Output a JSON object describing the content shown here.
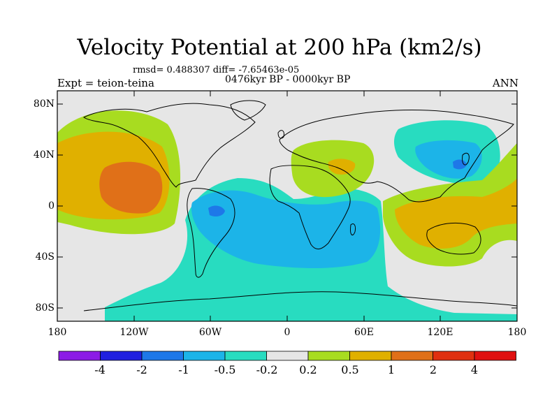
{
  "title": "Velocity Potential at 200 hPa (km2/s)",
  "stats": "rmsd= 0.488307 diff= -7.65463e-05",
  "period": "0476kyr BP - 0000kyr BP",
  "expt": "Expt = teion-teina",
  "season": "ANN",
  "lat_labels": [
    "80N",
    "40N",
    "0",
    "40S",
    "80S"
  ],
  "lon_labels": [
    "180",
    "120W",
    "60W",
    "0",
    "60E",
    "120E",
    "180"
  ],
  "colorbar": {
    "labels": [
      "-4",
      "-2",
      "-1",
      "-0.5",
      "-0.2",
      "0.2",
      "0.5",
      "1",
      "2",
      "4"
    ],
    "colors": [
      "#8c1be6",
      "#2020e0",
      "#1e78e8",
      "#1cb4e8",
      "#28dcc0",
      "#e6e6e6",
      "#a8dc20",
      "#e0b000",
      "#e07018",
      "#e03010",
      "#e01010"
    ]
  },
  "palette": {
    "neutral": "#e6e6e6",
    "neg_weak": "#28dcc0",
    "neg_mid": "#1cb4e8",
    "neg_strong": "#1e78e8",
    "pos_weak": "#a8dc20",
    "pos_mid": "#e0b000",
    "pos_strong": "#e07018"
  }
}
